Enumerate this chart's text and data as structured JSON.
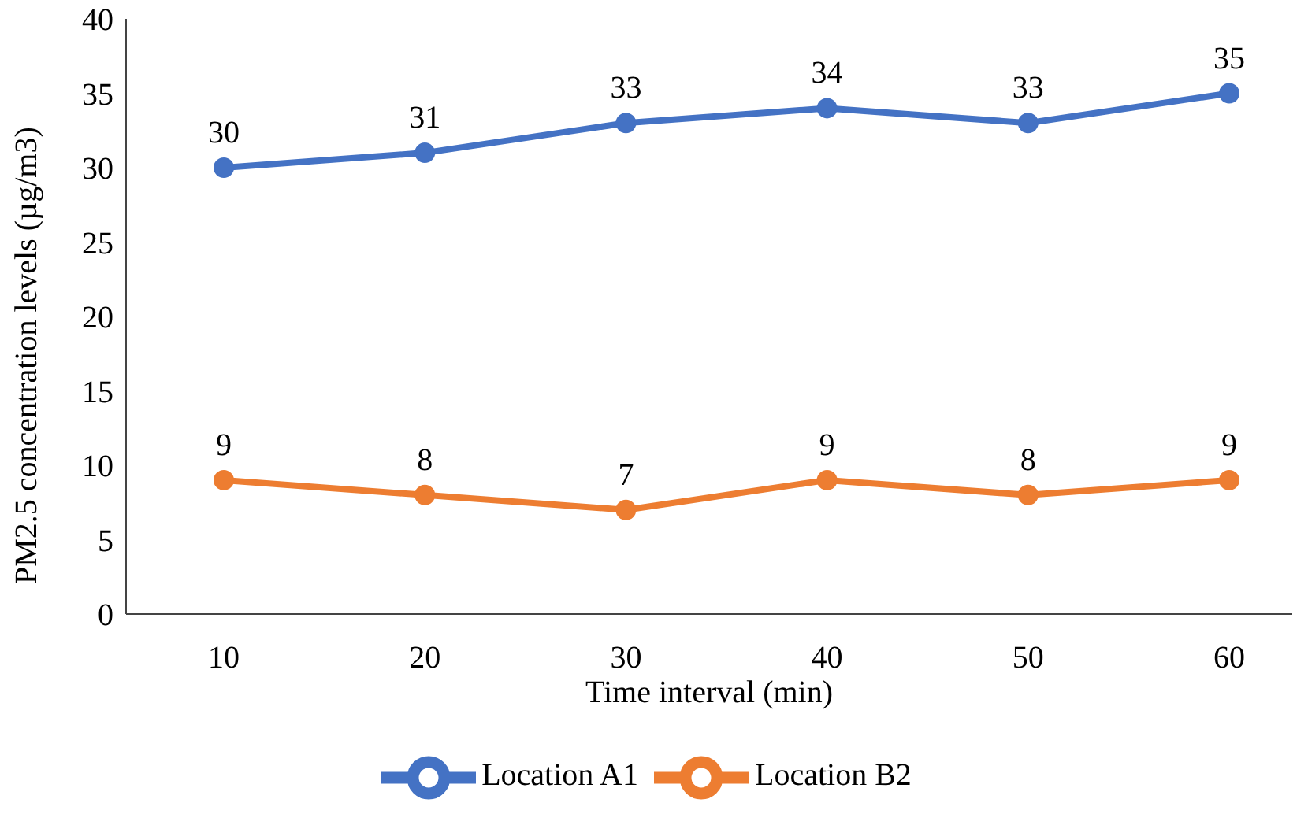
{
  "chart_data": {
    "type": "line",
    "xlabel": "Time interval (min)",
    "ylabel": "PM2.5 concentration levels (µg/m3)",
    "categories": [
      "10",
      "20",
      "30",
      "40",
      "50",
      "60"
    ],
    "series": [
      {
        "name": "Location A1",
        "color": "#4472c4",
        "values": [
          30,
          31,
          33,
          34,
          33,
          35
        ]
      },
      {
        "name": "Location B2",
        "color": "#ed7d31",
        "values": [
          9,
          8,
          7,
          9,
          8,
          9
        ]
      }
    ],
    "ylim": [
      0,
      40
    ],
    "yticks": [
      0,
      5,
      10,
      15,
      20,
      25,
      30,
      35,
      40
    ],
    "legend": "bottom",
    "marker": "circle",
    "data_labels": true
  }
}
